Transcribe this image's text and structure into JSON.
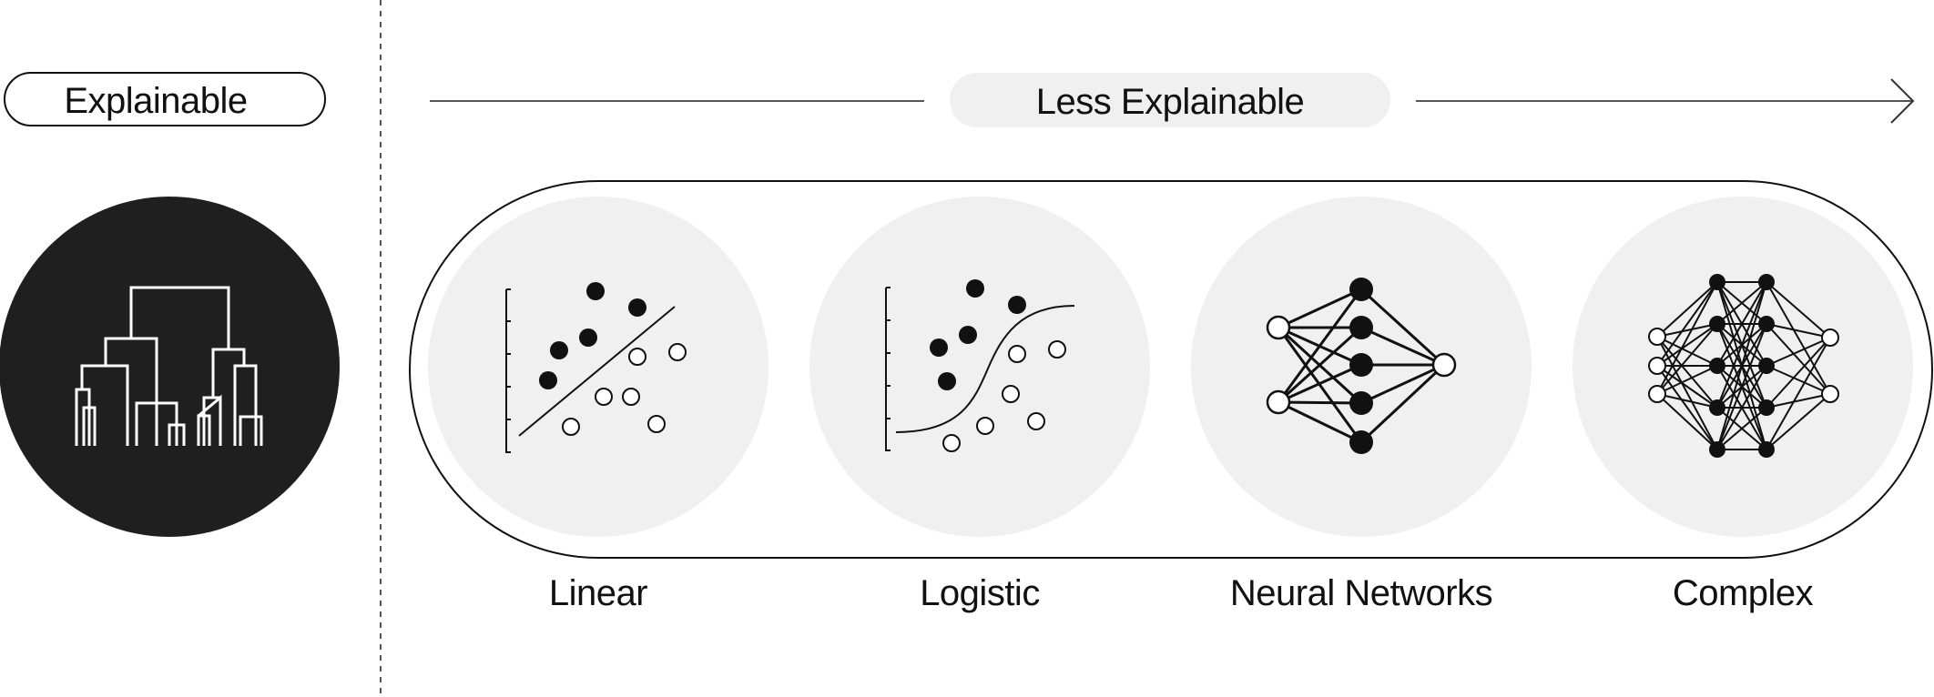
{
  "explainable": {
    "label": "Explainable",
    "icon": "dendrogram-icon"
  },
  "less_explainable": {
    "label": "Less Explainable"
  },
  "models": [
    {
      "label": "Linear",
      "icon": "linear-regression-icon"
    },
    {
      "label": "Logistic",
      "icon": "logistic-regression-icon"
    },
    {
      "label": "Neural Networks",
      "icon": "neural-network-icon"
    },
    {
      "label": "Complex",
      "icon": "deep-neural-network-icon"
    }
  ],
  "colors": {
    "dark_circle": "#1f1f1f",
    "light_circle": "#f0f0f1",
    "pill_fill": "#f0f0f1",
    "stroke": "#111111"
  }
}
